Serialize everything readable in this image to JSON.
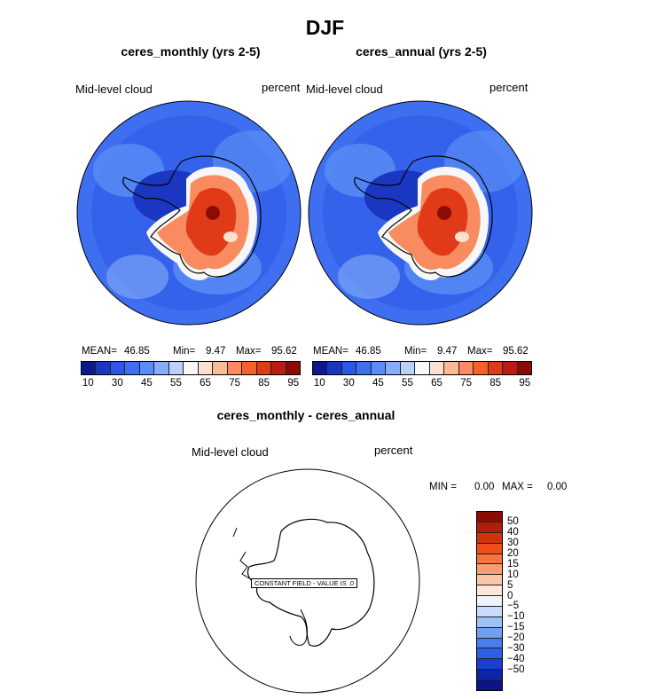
{
  "figure_title": "DJF",
  "panels": [
    {
      "title": "ceres_monthly (yrs 2-5)",
      "variable": "Mid-level cloud",
      "units": "percent",
      "stats": {
        "mean_label": "MEAN=",
        "mean": "46.85",
        "min_label": "Min=",
        "min": "9.47",
        "max_label": "Max=",
        "max": "95.62"
      }
    },
    {
      "title": "ceres_annual (yrs 2-5)",
      "variable": "Mid-level cloud",
      "units": "percent",
      "stats": {
        "mean_label": "MEAN=",
        "mean": "46.85",
        "min_label": "Min=",
        "min": "9.47",
        "max_label": "Max=",
        "max": "95.62"
      }
    }
  ],
  "colorbar": {
    "colors": [
      "#0b1a8a",
      "#1a37c2",
      "#2b56e6",
      "#3e6ff0",
      "#5a8df5",
      "#86aef8",
      "#b9d2fb",
      "#f7f7f7",
      "#fde0cf",
      "#fbb996",
      "#f88c60",
      "#f4612f",
      "#e03a19",
      "#b81d0e",
      "#8a0d05"
    ],
    "ticks": [
      "10",
      "30",
      "45",
      "55",
      "65",
      "75",
      "85",
      "95"
    ]
  },
  "diff_panel": {
    "title": "ceres_monthly - ceres_annual",
    "variable": "Mid-level cloud",
    "units": "percent",
    "min_label": "MIN =",
    "min": "0.00",
    "max_label": "MAX =",
    "max": "0.00",
    "constant_note": "CONSTANT FIELD - VALUE IS .0",
    "colorbar": {
      "colors": [
        "#8a0d05",
        "#b01e08",
        "#d2330d",
        "#ee4d1c",
        "#f6733f",
        "#f99e72",
        "#fbc6a8",
        "#fde6d8",
        "#eef4fc",
        "#c8dbfa",
        "#9fc0f7",
        "#719ff2",
        "#4a7eec",
        "#2d5ee4",
        "#1a3fcc",
        "#0d24a8",
        "#0a1682"
      ],
      "ticks": [
        "50",
        "40",
        "30",
        "20",
        "15",
        "10",
        "5",
        "0",
        "−5",
        "−10",
        "−15",
        "−20",
        "−30",
        "−40",
        "−50"
      ]
    }
  }
}
